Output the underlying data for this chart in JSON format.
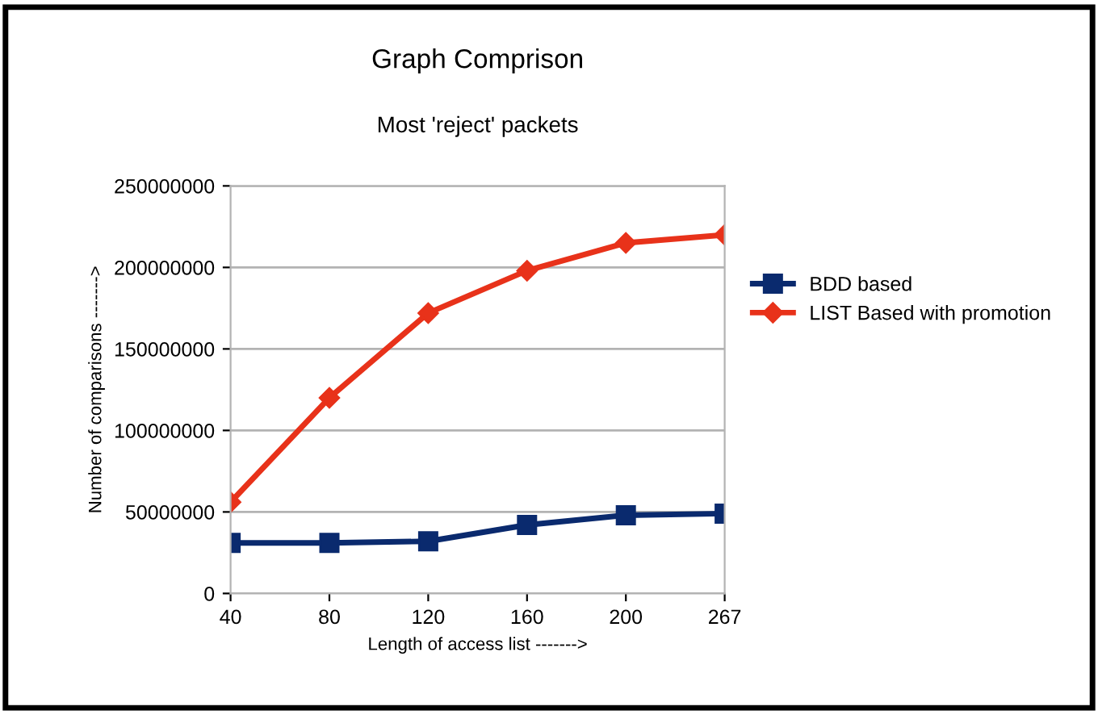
{
  "chart_data": {
    "type": "line",
    "title": "Graph Comprison",
    "subtitle": "Most 'reject' packets",
    "xlabel": "Length of access list ------->",
    "ylabel": "Number of comparisons ------->",
    "categories": [
      "40",
      "80",
      "120",
      "160",
      "200",
      "267"
    ],
    "series": [
      {
        "name": "BDD based",
        "color": "#0a2a6e",
        "marker": "square",
        "values": [
          31000000,
          31000000,
          32000000,
          42000000,
          48000000,
          49000000
        ]
      },
      {
        "name": "LIST Based with promotion",
        "color": "#e8321a",
        "marker": "diamond",
        "values": [
          56000000,
          120000000,
          172000000,
          198000000,
          215000000,
          220000000
        ]
      }
    ],
    "ylim": [
      0,
      250000000
    ],
    "yticks": [
      0,
      50000000,
      100000000,
      150000000,
      200000000,
      250000000
    ],
    "grid": "y",
    "legend": "right"
  }
}
